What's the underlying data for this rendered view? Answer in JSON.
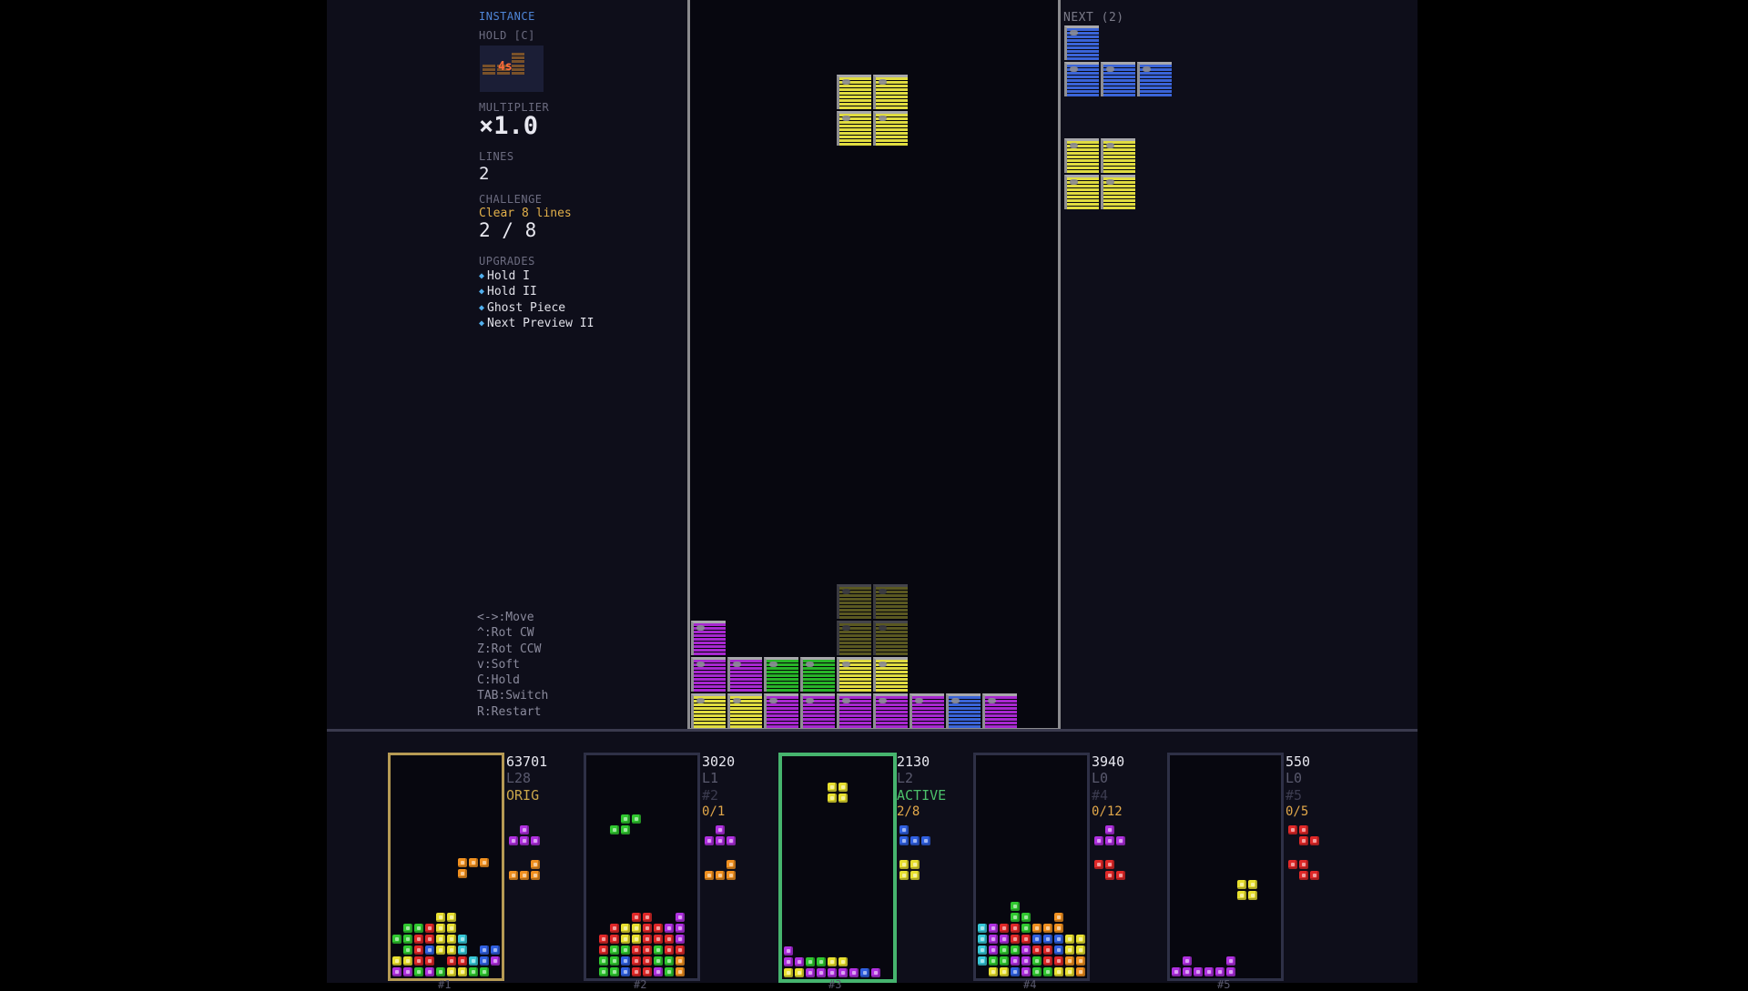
{
  "colors": {
    "I": "#38c8d8",
    "O": "#e8e030",
    "T": "#b030e0",
    "S": "#30c830",
    "Z": "#e02828",
    "J": "#3060e0",
    "L": "#f09020"
  },
  "main_colors": {
    "O": "#e0dc40",
    "T": "#a828d0",
    "S": "#28b428",
    "J": "#3a64d8"
  },
  "left_panel": {
    "instance_label": "INSTANCE",
    "hold_label": "HOLD [C]",
    "hold_piece": "L",
    "hold_cooldown": "4s",
    "multiplier_label": "MULTIPLIER",
    "multiplier_value": "×1.0",
    "lines_label": "LINES",
    "lines_value": "2",
    "challenge_label": "CHALLENGE",
    "challenge_desc": "Clear 8 lines",
    "challenge_progress": "2 / 8",
    "upgrades_label": "UPGRADES",
    "upgrades": [
      "Hold I",
      "Hold II",
      "Ghost Piece",
      "Next Preview II"
    ],
    "controls": [
      "<->:Move",
      "^:Rot CW",
      "Z:Rot CCW",
      "v:Soft",
      "C:Hold",
      "TAB:Switch",
      "R:Restart"
    ]
  },
  "main_board": {
    "cols": 10,
    "rows": 20,
    "falling_piece": {
      "type": "O",
      "cells": [
        [
          4,
          2
        ],
        [
          5,
          2
        ],
        [
          4,
          3
        ],
        [
          5,
          3
        ]
      ]
    },
    "ghost_piece": {
      "type": "O",
      "cells": [
        [
          4,
          16
        ],
        [
          5,
          16
        ],
        [
          4,
          17
        ],
        [
          5,
          17
        ]
      ]
    },
    "locked": [
      {
        "c": 0,
        "r": 17,
        "t": "T"
      },
      {
        "c": 0,
        "r": 18,
        "t": "T"
      },
      {
        "c": 1,
        "r": 18,
        "t": "T"
      },
      {
        "c": 2,
        "r": 18,
        "t": "S"
      },
      {
        "c": 3,
        "r": 18,
        "t": "S"
      },
      {
        "c": 4,
        "r": 18,
        "t": "O"
      },
      {
        "c": 5,
        "r": 18,
        "t": "O"
      },
      {
        "c": 0,
        "r": 19,
        "t": "O"
      },
      {
        "c": 1,
        "r": 19,
        "t": "O"
      },
      {
        "c": 2,
        "r": 19,
        "t": "T"
      },
      {
        "c": 3,
        "r": 19,
        "t": "T"
      },
      {
        "c": 4,
        "r": 19,
        "t": "T"
      },
      {
        "c": 5,
        "r": 19,
        "t": "T"
      },
      {
        "c": 6,
        "r": 19,
        "t": "T"
      },
      {
        "c": 7,
        "r": 19,
        "t": "J"
      },
      {
        "c": 8,
        "r": 19,
        "t": "T"
      }
    ]
  },
  "next_panel": {
    "label": "NEXT (2)",
    "pieces": [
      {
        "type": "J",
        "cells": [
          [
            0,
            0
          ],
          [
            0,
            1
          ],
          [
            1,
            1
          ],
          [
            2,
            1
          ]
        ]
      },
      {
        "type": "O",
        "cells": [
          [
            0,
            0
          ],
          [
            1,
            0
          ],
          [
            0,
            1
          ],
          [
            1,
            1
          ]
        ]
      }
    ]
  },
  "instances": [
    {
      "num": "#1",
      "score": "63701",
      "level": "L28",
      "tag": "ORIG",
      "tag_style": "orig",
      "challenge": "",
      "next": [
        {
          "type": "T",
          "cells": [
            [
              1,
              0
            ],
            [
              0,
              1
            ],
            [
              1,
              1
            ],
            [
              2,
              1
            ]
          ]
        },
        {
          "type": "L",
          "cells": [
            [
              2,
              0
            ],
            [
              0,
              1
            ],
            [
              1,
              1
            ],
            [
              2,
              1
            ]
          ]
        }
      ],
      "grid": [
        "..........",
        "..........",
        "..........",
        "..........",
        "..........",
        "..........",
        "..........",
        "..........",
        "..........",
        "......LLL.",
        "......L...",
        "..........",
        "..........",
        "..........",
        "....OO....",
        ".SSZOO....",
        "SSZZOOI...",
        ".SZJOOI.JJ",
        "OOZZ.ZZIJT",
        "TTSTSOOSS."
      ]
    },
    {
      "num": "#2",
      "score": "3020",
      "level": "L1",
      "tag": "#2",
      "tag_style": "dim",
      "challenge": "0/1",
      "next": [
        {
          "type": "T",
          "cells": [
            [
              1,
              0
            ],
            [
              0,
              1
            ],
            [
              1,
              1
            ],
            [
              2,
              1
            ]
          ]
        },
        {
          "type": "L",
          "cells": [
            [
              2,
              0
            ],
            [
              0,
              1
            ],
            [
              1,
              1
            ],
            [
              2,
              1
            ]
          ]
        }
      ],
      "grid": [
        "..........",
        "..........",
        "..........",
        "..........",
        "..........",
        "...SS.....",
        "..SS......",
        "..........",
        "..........",
        "..........",
        "..........",
        "..........",
        "..........",
        "..........",
        "....ZZ..T.",
        "..ZOOZZTT.",
        ".ZZOOZZZT.",
        ".ZSSZZSZZ.",
        ".SSJZZSSL.",
        ".SSJZZTSL."
      ]
    },
    {
      "num": "#3",
      "score": "2130",
      "level": "L2",
      "tag": "ACTIVE",
      "tag_style": "active",
      "challenge": "2/8",
      "next": [
        {
          "type": "J",
          "cells": [
            [
              0,
              0
            ],
            [
              0,
              1
            ],
            [
              1,
              1
            ],
            [
              2,
              1
            ]
          ]
        },
        {
          "type": "O",
          "cells": [
            [
              0,
              0
            ],
            [
              1,
              0
            ],
            [
              0,
              1
            ],
            [
              1,
              1
            ]
          ]
        }
      ],
      "grid": [
        "..........",
        "..........",
        "....OO....",
        "....OO....",
        "..........",
        "..........",
        "..........",
        "..........",
        "..........",
        "..........",
        "..........",
        "..........",
        "..........",
        "..........",
        "..........",
        "..........",
        "..........",
        "T.........",
        "TTSSOO....",
        "OOTTTTTJT."
      ]
    },
    {
      "num": "#4",
      "score": "3940",
      "level": "L0",
      "tag": "#4",
      "tag_style": "dim",
      "challenge": "0/12",
      "next": [
        {
          "type": "T",
          "cells": [
            [
              1,
              0
            ],
            [
              0,
              1
            ],
            [
              1,
              1
            ],
            [
              2,
              1
            ]
          ]
        },
        {
          "type": "Z",
          "cells": [
            [
              0,
              0
            ],
            [
              1,
              0
            ],
            [
              1,
              1
            ],
            [
              2,
              1
            ]
          ]
        }
      ],
      "grid": [
        "..........",
        "..........",
        "..........",
        "..........",
        "..........",
        "..........",
        "..........",
        "..........",
        "..........",
        "..........",
        "..........",
        "..........",
        "..........",
        "...S......",
        "...SS..L..",
        "ITZZSLLL..",
        "ITTZZJJJOO",
        "ITSSTZZJOO",
        "ISSTTSZZLL",
        ".OOJTSSOOL"
      ]
    },
    {
      "num": "#5",
      "score": "550",
      "level": "L0",
      "tag": "#5",
      "tag_style": "dim",
      "challenge": "0/5",
      "next": [
        {
          "type": "Z",
          "cells": [
            [
              0,
              0
            ],
            [
              1,
              0
            ],
            [
              1,
              1
            ],
            [
              2,
              1
            ]
          ]
        },
        {
          "type": "Z",
          "cells": [
            [
              0,
              0
            ],
            [
              1,
              0
            ],
            [
              1,
              1
            ],
            [
              2,
              1
            ]
          ]
        }
      ],
      "grid": [
        "..........",
        "..........",
        "..........",
        "..........",
        "..........",
        "..........",
        "..........",
        "..........",
        "..........",
        "..........",
        "..........",
        "......OO..",
        "......OO..",
        "..........",
        "..........",
        "..........",
        "..........",
        "..........",
        ".T...T....",
        "TTTTTT...."
      ]
    }
  ]
}
